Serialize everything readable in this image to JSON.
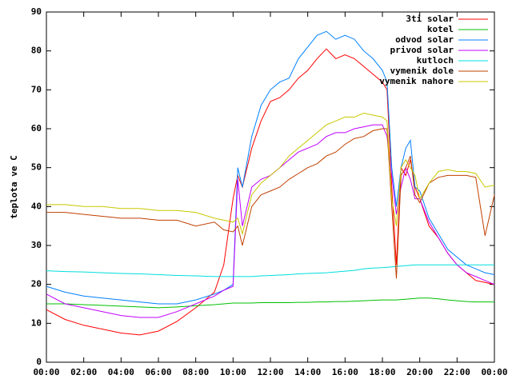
{
  "chart_data": {
    "type": "line",
    "ylabel": "teplota ve C",
    "x": [
      0,
      1,
      2,
      3,
      4,
      5,
      6,
      7,
      8,
      9,
      9.5,
      10,
      10.25,
      10.5,
      11,
      11.5,
      12,
      12.5,
      13,
      13.5,
      14,
      14.5,
      15,
      15.5,
      16,
      16.5,
      17,
      17.5,
      18,
      18.25,
      18.5,
      18.75,
      19,
      19.25,
      19.5,
      19.75,
      20,
      20.5,
      21,
      21.5,
      22,
      22.5,
      23,
      23.5,
      24
    ],
    "xlim": [
      0,
      24
    ],
    "xticks": [
      {
        "value": 0,
        "label": "00:00"
      },
      {
        "value": 2,
        "label": "02:00"
      },
      {
        "value": 4,
        "label": "04:00"
      },
      {
        "value": 6,
        "label": "06:00"
      },
      {
        "value": 8,
        "label": "08:00"
      },
      {
        "value": 10,
        "label": "10:00"
      },
      {
        "value": 12,
        "label": "12:00"
      },
      {
        "value": 14,
        "label": "14:00"
      },
      {
        "value": 16,
        "label": "16:00"
      },
      {
        "value": 18,
        "label": "18:00"
      },
      {
        "value": 20,
        "label": "20:00"
      },
      {
        "value": 22,
        "label": "22:00"
      },
      {
        "value": 24,
        "label": "00:00"
      }
    ],
    "ylim": [
      0,
      90
    ],
    "yticks": [
      0,
      10,
      20,
      30,
      40,
      50,
      60,
      70,
      80,
      90
    ],
    "grid": false,
    "series": [
      {
        "name": "3ti solar",
        "color": "#ff0000",
        "values": [
          13.5,
          11,
          9.5,
          8.5,
          7.5,
          7,
          8,
          10.5,
          14,
          18,
          25,
          42,
          48,
          45,
          55,
          62,
          67,
          68,
          70,
          73,
          75,
          78,
          80.5,
          78,
          79,
          78,
          76,
          74,
          72,
          70,
          45,
          25,
          50,
          48,
          52,
          45,
          42,
          35,
          32,
          28,
          25,
          23,
          21,
          20.5,
          20
        ]
      },
      {
        "name": "kotel",
        "color": "#00c000",
        "values": [
          15,
          15,
          14.8,
          14.6,
          14.4,
          14.2,
          14,
          14.2,
          14.5,
          14.8,
          15,
          15.2,
          15.2,
          15.2,
          15.2,
          15.3,
          15.3,
          15.3,
          15.3,
          15.4,
          15.4,
          15.5,
          15.5,
          15.6,
          15.6,
          15.7,
          15.8,
          15.9,
          16,
          16,
          16,
          16,
          16.1,
          16.2,
          16.3,
          16.4,
          16.5,
          16.5,
          16.3,
          16,
          15.8,
          15.6,
          15.5,
          15.5,
          15.5
        ]
      },
      {
        "name": "odvod solar",
        "color": "#0080ff",
        "values": [
          19.5,
          18,
          17,
          16.5,
          16,
          15.5,
          15,
          15,
          16,
          17.5,
          18.5,
          20,
          50,
          45,
          58,
          66,
          70,
          72,
          73,
          78,
          81,
          84,
          85,
          83,
          84,
          83,
          80,
          78,
          75,
          72,
          50,
          40,
          50,
          55,
          57,
          45,
          44,
          37,
          33,
          29,
          27,
          25,
          24,
          23,
          22.5
        ]
      },
      {
        "name": "privod solar",
        "color": "#c000ff",
        "values": [
          17.5,
          15,
          14,
          13,
          12,
          11.5,
          11.5,
          13,
          15,
          17,
          18.5,
          19.5,
          47,
          35,
          45,
          47,
          48,
          50,
          52,
          54,
          55,
          56,
          58,
          59,
          59,
          60,
          60.5,
          61,
          61,
          58,
          48,
          38,
          45,
          50,
          47,
          42,
          42,
          36,
          32,
          28,
          25,
          23,
          22,
          21,
          20
        ]
      },
      {
        "name": "kutloch",
        "color": "#00dddd",
        "values": [
          23.5,
          23.3,
          23.2,
          23,
          22.8,
          22.7,
          22.5,
          22.3,
          22.2,
          22,
          22,
          22,
          22,
          22,
          22,
          22.2,
          22.3,
          22.4,
          22.5,
          22.7,
          22.8,
          22.9,
          23,
          23.2,
          23.4,
          23.6,
          24,
          24.2,
          24.3,
          24.4,
          24.5,
          24.6,
          24.7,
          24.8,
          24.9,
          25,
          25,
          25,
          25,
          25,
          25,
          25,
          25,
          25,
          25
        ]
      },
      {
        "name": "vymenik dole",
        "color": "#c04000",
        "values": [
          38.5,
          38.5,
          38,
          37.5,
          37,
          37,
          36.5,
          36.5,
          35,
          36,
          34,
          33.5,
          35,
          30,
          40,
          43,
          44,
          45,
          47,
          48.5,
          50,
          51,
          53,
          54,
          56,
          57.5,
          58,
          59.5,
          60,
          60,
          40,
          21.5,
          48,
          50,
          53,
          43,
          41,
          46,
          47.5,
          48,
          48,
          48,
          47.5,
          32.5,
          43
        ]
      },
      {
        "name": "vymenik nahore",
        "color": "#c8c800",
        "values": [
          40.5,
          40.5,
          40,
          40,
          39.5,
          39.5,
          39,
          39,
          38.5,
          37,
          36.5,
          36,
          37,
          33,
          43,
          46,
          48,
          50,
          53,
          55,
          57,
          59,
          61,
          62,
          63,
          63,
          64,
          63.5,
          63,
          62,
          42,
          35,
          50,
          52,
          50,
          48,
          42,
          46,
          49,
          49.5,
          49,
          49,
          48.5,
          45,
          45.5
        ]
      }
    ]
  }
}
